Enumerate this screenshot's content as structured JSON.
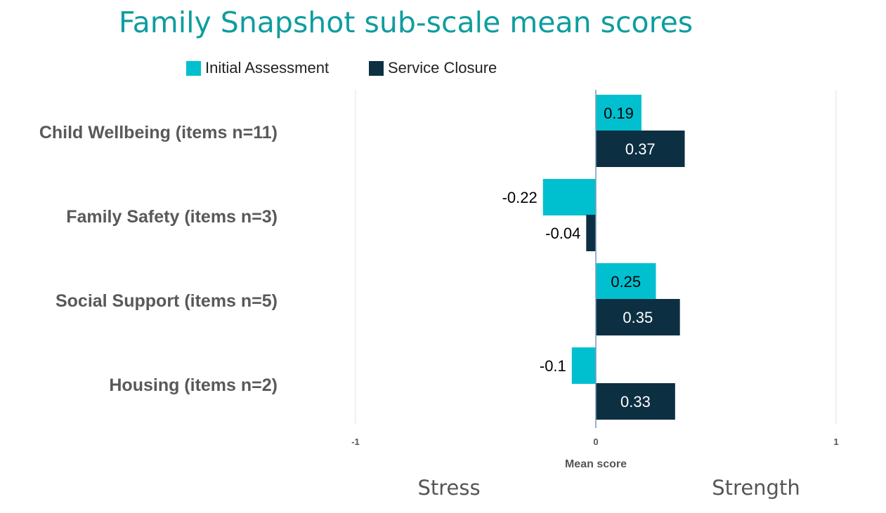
{
  "chart_data": {
    "type": "bar",
    "orientation": "horizontal",
    "title": "Family Snapshot sub-scale mean scores",
    "categories": [
      "Child Wellbeing (items n=11)",
      "Family Safety (items n=3)",
      "Social Support (items n=5)",
      "Housing (items n=2)"
    ],
    "series": [
      {
        "name": "Initial Assessment",
        "color": "#00C0D0",
        "values": [
          0.19,
          -0.22,
          0.25,
          -0.1
        ],
        "labels": [
          "0.19",
          "-0.22",
          "0.25",
          "-0.1"
        ]
      },
      {
        "name": "Service Closure",
        "color": "#0D2F42",
        "values": [
          0.37,
          -0.04,
          0.35,
          0.33
        ],
        "labels": [
          "0.37",
          "-0.04",
          "0.35",
          "0.33"
        ]
      }
    ],
    "xlabel": "Mean score",
    "xlim": [
      -1,
      1
    ],
    "xticks": [
      "-1",
      "0",
      "1"
    ],
    "grid": true,
    "legend": "top",
    "annotations": {
      "left": "Stress",
      "right": "Strength"
    }
  }
}
